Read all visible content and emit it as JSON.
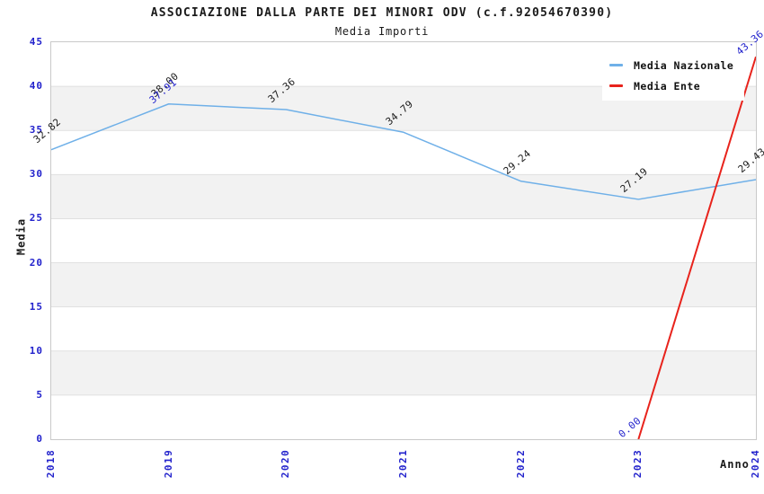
{
  "colors": {
    "tick_blue": "#2222cc",
    "ente_label_blue": "#2222cc",
    "national_label_black": "#1a1a1a",
    "band_gray": "#f2f2f2",
    "grid_line": "#e0e0e0",
    "plot_border": "#c9c9c9",
    "background": "#ffffff"
  },
  "chart_data": {
    "type": "line",
    "title": "ASSOCIAZIONE DALLA PARTE DEI MINORI ODV (c.f.92054670390)",
    "subtitle": "Media Importi",
    "xlabel": "Anno",
    "ylabel": "Media",
    "categories": [
      "2018",
      "2019",
      "2020",
      "2021",
      "2022",
      "2023",
      "2024"
    ],
    "ylim": [
      0,
      45
    ],
    "yticks": [
      "0",
      "5",
      "10",
      "15",
      "20",
      "25",
      "30",
      "35",
      "40",
      "45"
    ],
    "grid": "horizontal gridlines every 5 units with alternating white/gray bands",
    "legend_position": "top-right",
    "series": [
      {
        "name": "Media Nazionale",
        "color": "#6fb0e8",
        "label_color": "#1a1a1a",
        "line_width": 1.5,
        "values": [
          32.82,
          38.0,
          37.36,
          34.79,
          29.24,
          27.19,
          29.43
        ],
        "point_labels": [
          "32.82",
          "38.00",
          "37.36",
          "34.79",
          "29.24",
          "27.19",
          "29.43"
        ]
      },
      {
        "name": "Media Ente",
        "color": "#e8231c",
        "label_color": "#2222cc",
        "line_width": 2,
        "values": [
          null,
          37.91,
          null,
          null,
          null,
          0.0,
          43.36
        ],
        "point_labels": [
          null,
          "37.91",
          null,
          null,
          null,
          "0.00",
          "43.36"
        ]
      }
    ]
  }
}
